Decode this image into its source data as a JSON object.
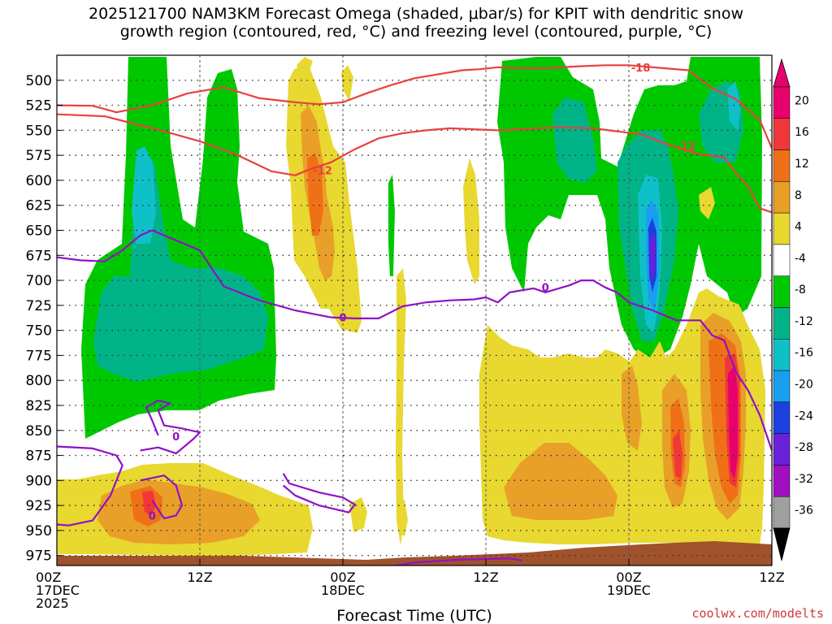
{
  "chart_data": {
    "type": "heatmap",
    "title": [
      "2025121700 NAM3KM Forecast Omega (shaded, μbar/s) for KPIT with dendritic snow",
      "growth region (contoured, red, °C) and freezing level (contoured, purple, °C)"
    ],
    "xlabel": "Forecast Time (UTC)",
    "ylabel": "",
    "x_range_hours": [
      0,
      60
    ],
    "y_range_hpa": [
      985,
      475
    ],
    "y_ticks": [
      "500",
      "525",
      "550",
      "575",
      "600",
      "625",
      "650",
      "675",
      "700",
      "725",
      "750",
      "775",
      "800",
      "825",
      "850",
      "875",
      "900",
      "925",
      "950",
      "975"
    ],
    "x_ticks": [
      {
        "hour": 0,
        "lines": [
          "00Z",
          "17DEC",
          "2025"
        ]
      },
      {
        "hour": 12,
        "lines": [
          "12Z"
        ]
      },
      {
        "hour": 24,
        "lines": [
          "00Z",
          "18DEC"
        ]
      },
      {
        "hour": 36,
        "lines": [
          "12Z"
        ]
      },
      {
        "hour": 48,
        "lines": [
          "00Z",
          "19DEC"
        ]
      },
      {
        "hour": 60,
        "lines": [
          "12Z"
        ]
      }
    ],
    "colorbar": {
      "labels": [
        "20",
        "16",
        "12",
        "8",
        "4",
        "-4",
        "-8",
        "-12",
        "-16",
        "-20",
        "-24",
        "-28",
        "-32",
        "-36"
      ],
      "colors": [
        "#e8006c",
        "#f03838",
        "#f07018",
        "#e8a028",
        "#e8d830",
        "#ffffff",
        "#00c800",
        "#00b488",
        "#10c0c8",
        "#1a9ef0",
        "#1c40e0",
        "#6a20d8",
        "#a010c0",
        "#a0a0a0"
      ]
    },
    "contour_labels": {
      "dgz_upper": "-18",
      "dgz_lower": "-12",
      "freezing": "0"
    },
    "series": [
      {
        "name": "-18",
        "color": "#e84040",
        "points": [
          [
            0,
            525
          ],
          [
            3,
            525.5
          ],
          [
            5,
            532
          ],
          [
            8,
            525
          ],
          [
            11,
            513
          ],
          [
            14,
            507
          ],
          [
            17,
            518
          ],
          [
            20,
            522
          ],
          [
            22,
            524
          ],
          [
            24,
            522
          ],
          [
            26,
            513
          ],
          [
            28,
            505
          ],
          [
            30,
            498
          ],
          [
            32,
            494
          ],
          [
            34,
            490
          ],
          [
            35.5,
            489
          ],
          [
            37,
            487
          ],
          [
            39,
            488
          ],
          [
            41,
            488
          ],
          [
            44,
            486
          ],
          [
            46,
            485
          ],
          [
            48,
            485
          ],
          [
            51,
            488
          ],
          [
            53,
            490
          ],
          [
            55,
            508
          ],
          [
            57,
            519
          ],
          [
            59,
            540
          ],
          [
            60,
            568
          ]
        ]
      },
      {
        "name": "-12",
        "color": "#e84040",
        "points": [
          [
            0,
            534
          ],
          [
            4,
            536
          ],
          [
            6,
            542
          ],
          [
            9,
            551
          ],
          [
            12,
            561
          ],
          [
            15,
            574
          ],
          [
            18,
            591
          ],
          [
            20,
            595
          ],
          [
            21,
            590
          ],
          [
            23,
            582
          ],
          [
            25,
            569
          ],
          [
            27,
            558
          ],
          [
            29,
            553
          ],
          [
            31,
            550
          ],
          [
            33,
            548
          ],
          [
            35,
            549
          ],
          [
            37,
            550
          ],
          [
            39,
            549
          ],
          [
            42,
            547
          ],
          [
            45,
            548
          ],
          [
            47,
            551
          ],
          [
            49,
            554
          ],
          [
            51,
            563
          ],
          [
            53,
            571
          ],
          [
            54,
            574
          ],
          [
            56,
            577
          ],
          [
            57,
            593
          ],
          [
            58,
            606
          ],
          [
            59,
            628
          ],
          [
            60,
            632
          ]
        ]
      },
      {
        "name": "0",
        "color": "#9010c8",
        "points": [
          [
            0,
            677
          ],
          [
            2,
            680
          ],
          [
            4,
            681
          ],
          [
            5.5,
            670
          ],
          [
            7,
            655
          ],
          [
            8,
            650
          ],
          [
            10,
            660
          ],
          [
            12,
            670
          ],
          [
            14,
            706
          ],
          [
            17,
            720
          ],
          [
            20,
            730
          ],
          [
            23,
            737
          ],
          [
            25,
            738
          ],
          [
            27,
            738
          ],
          [
            29,
            726
          ],
          [
            31,
            722
          ],
          [
            33,
            720
          ],
          [
            35,
            719
          ],
          [
            36,
            717
          ],
          [
            37,
            722
          ],
          [
            38,
            712
          ],
          [
            40,
            708
          ],
          [
            41,
            712
          ],
          [
            43,
            705
          ],
          [
            44,
            700
          ],
          [
            45,
            700
          ],
          [
            46,
            707
          ],
          [
            47,
            712
          ],
          [
            48,
            722
          ],
          [
            50,
            730
          ],
          [
            52,
            740
          ],
          [
            54,
            740
          ],
          [
            55,
            755
          ],
          [
            56,
            760
          ],
          [
            57,
            792
          ],
          [
            58,
            810
          ],
          [
            59,
            835
          ],
          [
            60,
            870
          ]
        ]
      }
    ]
  },
  "credit": "coolwx.com/modelts"
}
